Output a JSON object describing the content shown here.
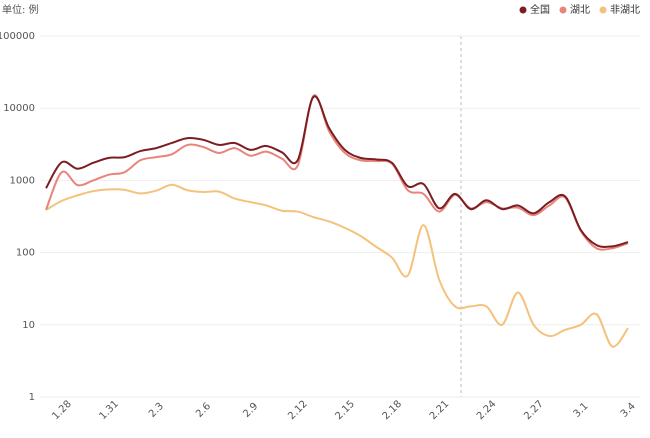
{
  "chart_data": {
    "type": "line",
    "unit_label": "单位: 例",
    "categories": [
      null,
      "1.28",
      null,
      null,
      "1.31",
      null,
      null,
      "2.3",
      null,
      null,
      "2.6",
      null,
      null,
      "2.9",
      null,
      null,
      "2.12",
      null,
      null,
      "2.15",
      null,
      null,
      "2.18",
      null,
      null,
      "2.21",
      null,
      null,
      "2.24",
      null,
      null,
      "2.27",
      null,
      null,
      "3.1",
      null,
      null,
      "3.4"
    ],
    "series": [
      {
        "name": "全国",
        "color": "#7b1e22",
        "values": [
          780,
          1780,
          1450,
          1750,
          2050,
          2100,
          2550,
          2800,
          3300,
          3850,
          3650,
          3100,
          3300,
          2650,
          3000,
          2450,
          1900,
          14300,
          5300,
          2650,
          2050,
          1950,
          1750,
          830,
          890,
          410,
          650,
          400,
          530,
          400,
          450,
          350,
          500,
          600,
          205,
          127,
          122,
          140
        ]
      },
      {
        "name": "湖北",
        "color": "#e8847c",
        "values": [
          390,
          1300,
          860,
          1000,
          1200,
          1300,
          1900,
          2100,
          2300,
          3100,
          2900,
          2400,
          2800,
          2200,
          2500,
          2000,
          1600,
          14800,
          4800,
          2400,
          1900,
          1850,
          1700,
          730,
          650,
          370,
          630,
          410,
          500,
          410,
          420,
          330,
          450,
          580,
          200,
          115,
          115,
          135
        ]
      },
      {
        "name": "非湖北",
        "color": "#f4c27c",
        "values": [
          390,
          520,
          620,
          710,
          750,
          740,
          660,
          720,
          870,
          730,
          690,
          700,
          560,
          500,
          450,
          380,
          370,
          310,
          270,
          220,
          170,
          120,
          85,
          48,
          240,
          42,
          18,
          18,
          18,
          10,
          28,
          10,
          7,
          8.5,
          10,
          14,
          5,
          9
        ]
      }
    ],
    "yscale": "log",
    "ylim": [
      1,
      100000
    ],
    "yticks": [
      1,
      10,
      100,
      1000,
      10000,
      100000
    ],
    "grid": true,
    "legend": "top-right"
  }
}
